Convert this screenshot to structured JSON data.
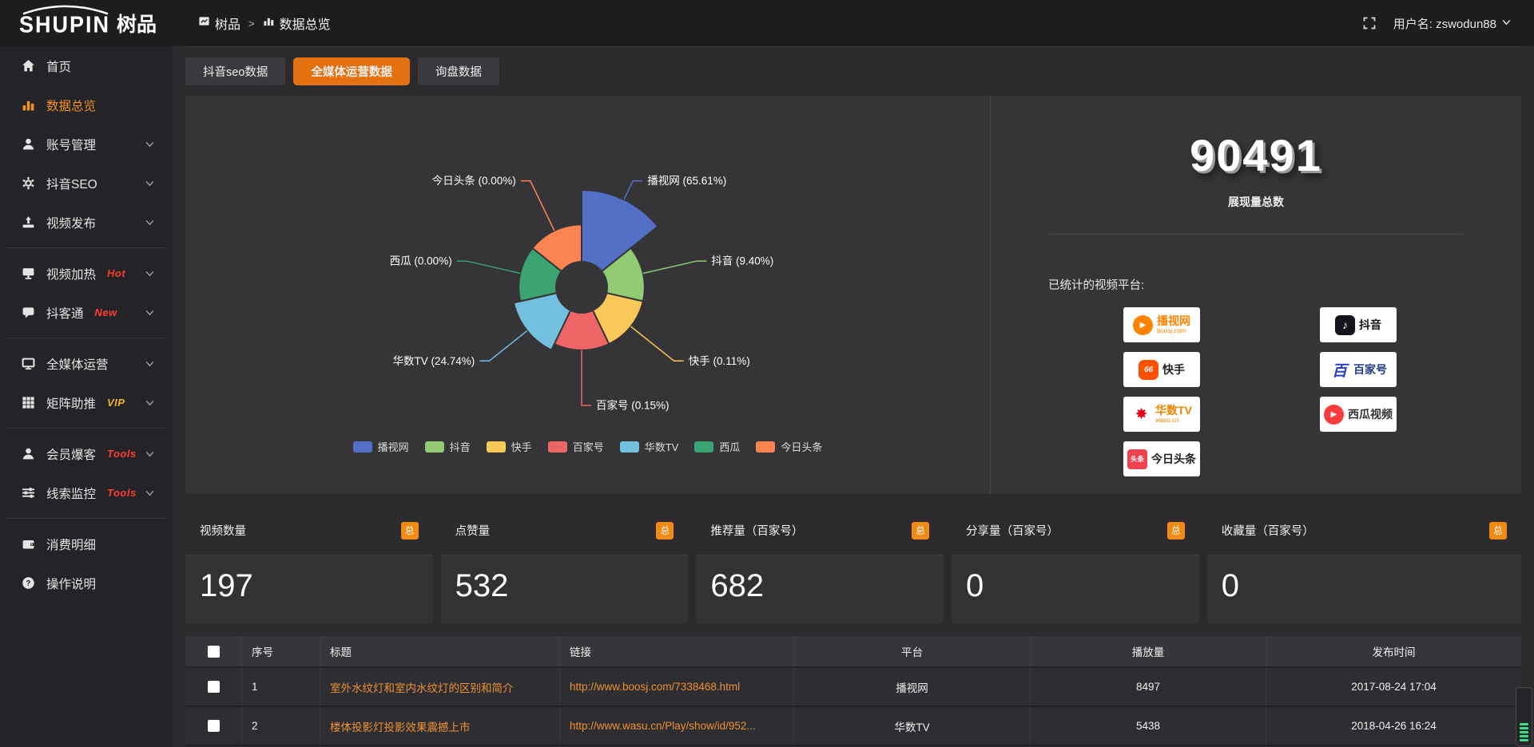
{
  "app": {
    "logo_main": "SHUPIN",
    "logo_cn": "树品"
  },
  "topbar": {
    "breadcrumb": [
      "树品",
      "数据总览"
    ],
    "username": "用户名: zswodun88"
  },
  "sidebar": {
    "items": [
      {
        "key": "home",
        "icon": "home",
        "label": "首页",
        "active": false,
        "badge": "",
        "badge_color": "",
        "arrow": false,
        "divider_after": false
      },
      {
        "key": "data-overview",
        "icon": "chart",
        "label": "数据总览",
        "active": true,
        "badge": "",
        "badge_color": "",
        "arrow": false,
        "divider_after": false
      },
      {
        "key": "account",
        "icon": "user",
        "label": "账号管理",
        "active": false,
        "badge": "",
        "badge_color": "",
        "arrow": true,
        "divider_after": false
      },
      {
        "key": "douyin-seo",
        "icon": "gear",
        "label": "抖音SEO",
        "active": false,
        "badge": "",
        "badge_color": "",
        "arrow": true,
        "divider_after": false
      },
      {
        "key": "video-publish",
        "icon": "publish",
        "label": "视频发布",
        "active": false,
        "badge": "",
        "badge_color": "",
        "arrow": true,
        "divider_after": true
      },
      {
        "key": "video-heat",
        "icon": "monitor",
        "label": "视频加热",
        "active": false,
        "badge": "Hot",
        "badge_color": "#ff3b30",
        "arrow": true,
        "divider_after": false
      },
      {
        "key": "douketong",
        "icon": "chat",
        "label": "抖客通",
        "active": false,
        "badge": "New",
        "badge_color": "#ff3b30",
        "arrow": true,
        "divider_after": true
      },
      {
        "key": "media-ops",
        "icon": "screen",
        "label": "全媒体运营",
        "active": false,
        "badge": "",
        "badge_color": "",
        "arrow": true,
        "divider_after": false
      },
      {
        "key": "matrix-boost",
        "icon": "grid",
        "label": "矩阵助推",
        "active": false,
        "badge": "VIP",
        "badge_color": "#f0b429",
        "arrow": true,
        "divider_after": true
      },
      {
        "key": "member",
        "icon": "member",
        "label": "会员爆客",
        "active": false,
        "badge": "Tools",
        "badge_color": "#ff3b30",
        "arrow": true,
        "divider_after": false
      },
      {
        "key": "clue-monitor",
        "icon": "sliders",
        "label": "线索监控",
        "active": false,
        "badge": "Tools",
        "badge_color": "#ff3b30",
        "arrow": true,
        "divider_after": true
      },
      {
        "key": "consume-detail",
        "icon": "wallet",
        "label": "消费明细",
        "active": false,
        "badge": "",
        "badge_color": "",
        "arrow": false,
        "divider_after": false
      },
      {
        "key": "help",
        "icon": "help",
        "label": "操作说明",
        "active": false,
        "badge": "",
        "badge_color": "",
        "arrow": false,
        "divider_after": false
      }
    ]
  },
  "tabs": {
    "items": [
      "抖音seo数据",
      "全媒体运营数据",
      "询盘数据"
    ],
    "active_index": 1
  },
  "chart_data": {
    "type": "pie",
    "variant": "nightingale-rose",
    "label_format": "{name} ({percent}%)",
    "legend_position": "bottom",
    "items": [
      {
        "name": "播视网",
        "percent": 65.61,
        "color": "#5470c6"
      },
      {
        "name": "抖音",
        "percent": 9.4,
        "color": "#91cc75"
      },
      {
        "name": "快手",
        "percent": 0.11,
        "color": "#fac858"
      },
      {
        "name": "百家号",
        "percent": 0.15,
        "color": "#ee6666"
      },
      {
        "name": "华数TV",
        "percent": 24.74,
        "color": "#73c0de"
      },
      {
        "name": "西瓜",
        "percent": 0.0,
        "color": "#3ba272"
      },
      {
        "name": "今日头条",
        "percent": 0.0,
        "color": "#fc8452"
      }
    ]
  },
  "summary": {
    "total_value": "90491",
    "total_label": "展现量总数",
    "platforms_label": "已统计的视频平台:",
    "platforms": [
      {
        "key": "boosj",
        "name": "播视网",
        "sub": "boosj.com"
      },
      {
        "key": "douyin",
        "name": "抖音",
        "sub": ""
      },
      {
        "key": "kuaishou",
        "name": "快手",
        "sub": ""
      },
      {
        "key": "baijiahao",
        "name": "百家号",
        "sub": ""
      },
      {
        "key": "wasu",
        "name": "华数TV",
        "sub": "wasu.cn"
      },
      {
        "key": "xigua",
        "name": "西瓜视频",
        "sub": ""
      },
      {
        "key": "toutiao",
        "name": "今日头条",
        "sub": ""
      }
    ]
  },
  "stat_cards": [
    {
      "label": "视频数量",
      "badge": "总",
      "value": "197"
    },
    {
      "label": "点赞量",
      "badge": "总",
      "value": "532"
    },
    {
      "label": "推荐量（百家号）",
      "badge": "总",
      "value": "682"
    },
    {
      "label": "分享量（百家号）",
      "badge": "总",
      "value": "0"
    },
    {
      "label": "收藏量（百家号）",
      "badge": "总",
      "value": "0"
    }
  ],
  "table": {
    "columns": [
      "序号",
      "标题",
      "链接",
      "平台",
      "播放量",
      "发布时间"
    ],
    "rows": [
      {
        "index": "1",
        "title": "室外水纹灯和室内水纹灯的区别和简介",
        "link": "http://www.boosj.com/7338468.html",
        "platform": "播视网",
        "plays": "8497",
        "time": "2017-08-24 17:04"
      },
      {
        "index": "2",
        "title": "楼体投影灯投影效果震撼上市",
        "link": "http://www.wasu.cn/Play/show/id/952...",
        "platform": "华数TV",
        "plays": "5438",
        "time": "2018-04-26 16:24"
      }
    ]
  },
  "colors": {
    "accent_orange": "#e4710f",
    "link_orange": "#ef9034",
    "hot_red": "#ff3b30",
    "vip_yellow": "#f0b429",
    "badge_orange": "#f18a12"
  }
}
